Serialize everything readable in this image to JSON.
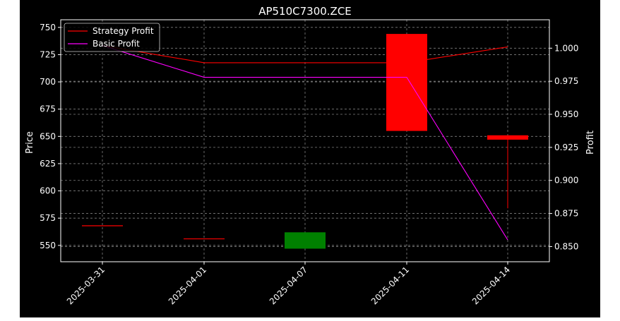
{
  "chart_data": {
    "type": "candlestick-with-lines",
    "title": "AP510C7300.ZCE",
    "xlabel": "",
    "ylabel_left": "Price",
    "ylabel_right": "Profit",
    "categories": [
      "2025-03-31",
      "2025-04-01",
      "2025-04-07",
      "2025-04-11",
      "2025-04-14"
    ],
    "y_left_range": [
      535,
      757
    ],
    "y_left_ticks": [
      550,
      575,
      600,
      625,
      650,
      675,
      700,
      725,
      750
    ],
    "y_right_range": [
      0.8385,
      1.0215
    ],
    "y_right_ticks": [
      0.85,
      0.875,
      0.9,
      0.925,
      0.95,
      0.975,
      1.0
    ],
    "y_right_tick_labels": [
      "0.850",
      "0.875",
      "0.900",
      "0.925",
      "0.950",
      "0.975",
      "1.000"
    ],
    "grid": true,
    "legend_position": "top-left",
    "candles": [
      {
        "date": "2025-03-31",
        "open": 568,
        "close": 568,
        "high": 568,
        "low": 568,
        "color": "#ff0000"
      },
      {
        "date": "2025-04-01",
        "open": 556,
        "close": 556,
        "high": 556,
        "low": 556,
        "color": "#ff0000"
      },
      {
        "date": "2025-04-07",
        "open": 547,
        "close": 562,
        "high": 562,
        "low": 547,
        "color": "#008000"
      },
      {
        "date": "2025-04-11",
        "open": 744,
        "close": 655,
        "high": 744,
        "low": 655,
        "color": "#ff0000"
      },
      {
        "date": "2025-04-14",
        "open": 651,
        "close": 647,
        "high": 651,
        "low": 584,
        "color": "#ff0000"
      }
    ],
    "series": [
      {
        "name": "Strategy Profit",
        "color": "#ff0000",
        "axis": "right",
        "values": [
          1.002,
          0.989,
          0.989,
          0.989,
          1.001
        ]
      },
      {
        "name": "Basic Profit",
        "color": "#ff00ff",
        "axis": "right",
        "values": [
          1.002,
          0.978,
          0.978,
          0.978,
          0.855
        ]
      }
    ],
    "colors": {
      "background": "#000000",
      "frame": "#ffffff",
      "grid": "#808080",
      "text": "#ffffff"
    }
  }
}
